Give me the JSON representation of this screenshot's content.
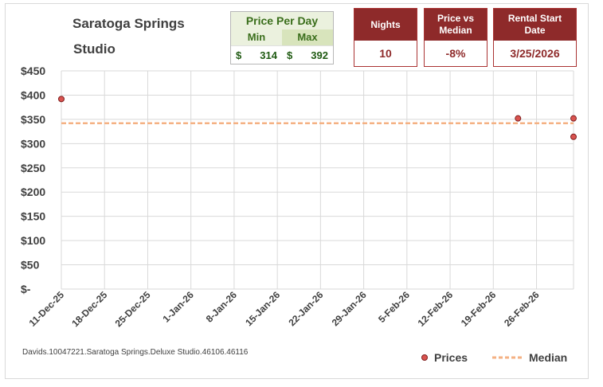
{
  "title": {
    "line1": "Saratoga Springs",
    "line2": "Studio"
  },
  "price_per_day": {
    "header": "Price Per Day",
    "min_label": "Min",
    "max_label": "Max",
    "currency": "$",
    "min_value": "314",
    "max_value": "392"
  },
  "kpis": {
    "nights": {
      "label": "Nights",
      "value": "10"
    },
    "price_vs_median": {
      "label_line1": "Price vs",
      "label_line2": "Median",
      "value": "-8%"
    },
    "rental_start": {
      "label_line1": "Rental Start",
      "label_line2": "Date",
      "value": "3/25/2026"
    }
  },
  "footer_note": "Davids.10047221.Saratoga Springs.Deluxe Studio.46106.46116",
  "legend": {
    "prices": "Prices",
    "median": "Median"
  },
  "colors": {
    "kpi_header": "#8e2a2a",
    "price_marker": "#d9534f",
    "median_line": "#f4b183",
    "price_green": "#3a6e1b",
    "grid": "#d9d9d9"
  },
  "chart_data": {
    "type": "scatter",
    "title": "",
    "xlabel": "",
    "ylabel": "",
    "ylim": [
      0,
      450
    ],
    "y_ticks": [
      0,
      50,
      100,
      150,
      200,
      250,
      300,
      350,
      400,
      450
    ],
    "y_tick_labels": [
      "$-",
      "$50",
      "$100",
      "$150",
      "$200",
      "$250",
      "$300",
      "$350",
      "$400",
      "$450"
    ],
    "x_tick_labels": [
      "11-Dec-25",
      "18-Dec-25",
      "25-Dec-25",
      "1-Jan-26",
      "8-Jan-26",
      "15-Jan-26",
      "22-Jan-26",
      "29-Jan-26",
      "5-Feb-26",
      "12-Feb-26",
      "19-Feb-26",
      "26-Feb-26"
    ],
    "x_range": [
      "2025-12-11",
      "2026-03-04"
    ],
    "grid": true,
    "legend_position": "bottom-right",
    "series": [
      {
        "name": "Prices",
        "kind": "points",
        "points": [
          {
            "x": "2025-12-11",
            "y": 392
          },
          {
            "x": "2026-02-23",
            "y": 352
          },
          {
            "x": "2026-03-04",
            "y": 352
          },
          {
            "x": "2026-03-04",
            "y": 314
          }
        ]
      },
      {
        "name": "Median",
        "kind": "dashed-line",
        "y": 342
      }
    ]
  }
}
